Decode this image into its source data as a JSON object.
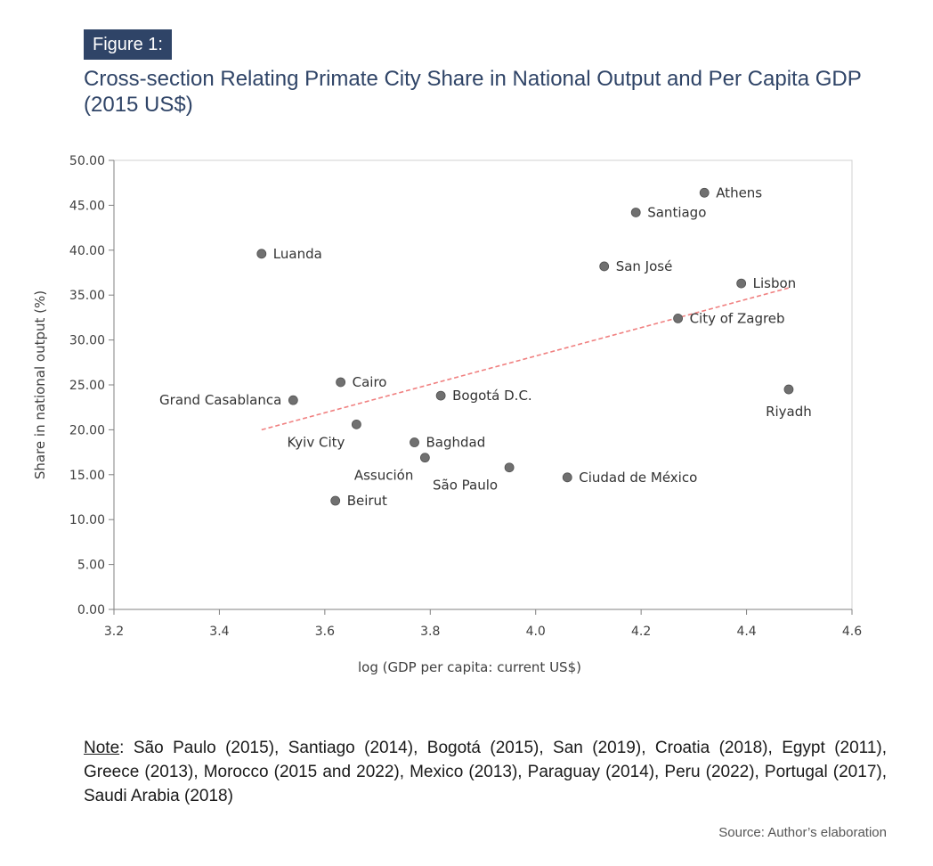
{
  "figure_label": "Figure 1:",
  "figure_title": "Cross-section Relating Primate City Share in National Output and Per Capita GDP (2015 US$)",
  "note_label": "Note",
  "note_text": ": São Paulo (2015), Santiago (2014), Bogotá (2015), San  (2019), Croatia (2018), Egypt (2011), Greece (2013), Morocco (2015 and 2022), Mexico (2013), Paraguay (2014), Peru (2022), Portugal (2017), Saudi Arabia (2018)",
  "source": "Source: Author’s elaboration",
  "colors": {
    "header_bg": "#2f4467",
    "point": "#707070",
    "trend": "#f08080"
  },
  "chart_data": {
    "type": "scatter",
    "xlabel": "log (GDP per capita: current US$)",
    "ylabel": "Share in national output (%)",
    "xlim": [
      3.2,
      4.6
    ],
    "ylim": [
      0,
      50
    ],
    "x_ticks": [
      "3.2",
      "3.4",
      "3.6",
      "3.8",
      "4.0",
      "4.2",
      "4.4",
      "4.6"
    ],
    "y_ticks": [
      "0.00",
      "5.00",
      "10.00",
      "15.00",
      "20.00",
      "25.00",
      "30.00",
      "35.00",
      "40.00",
      "45.00",
      "50.00"
    ],
    "grid": false,
    "points": [
      {
        "label": "Athens",
        "x": 4.32,
        "y": 46.4
      },
      {
        "label": "Santiago",
        "x": 4.19,
        "y": 44.2
      },
      {
        "label": "Luanda",
        "x": 3.48,
        "y": 39.6
      },
      {
        "label": "San José",
        "x": 4.13,
        "y": 38.2
      },
      {
        "label": "Lisbon",
        "x": 4.39,
        "y": 36.3
      },
      {
        "label": "City of Zagreb",
        "x": 4.27,
        "y": 32.4
      },
      {
        "label": "Cairo",
        "x": 3.63,
        "y": 25.3
      },
      {
        "label": "Riyadh",
        "x": 4.48,
        "y": 24.5
      },
      {
        "label": "Bogotá D.C.",
        "x": 3.82,
        "y": 23.8
      },
      {
        "label": "Grand Casablanca",
        "x": 3.54,
        "y": 23.3
      },
      {
        "label": "Kyiv City",
        "x": 3.66,
        "y": 20.6
      },
      {
        "label": "Baghdad",
        "x": 3.77,
        "y": 18.6
      },
      {
        "label": "Assución",
        "x": 3.79,
        "y": 16.9
      },
      {
        "label": "São Paulo",
        "x": 3.95,
        "y": 15.8
      },
      {
        "label": "Ciudad de México",
        "x": 4.06,
        "y": 14.7
      },
      {
        "label": "Beirut",
        "x": 3.62,
        "y": 12.1
      }
    ],
    "trendline": {
      "style": "dashed",
      "from": {
        "x": 3.48,
        "y": 20.0
      },
      "to": {
        "x": 4.48,
        "y": 35.8
      }
    }
  }
}
